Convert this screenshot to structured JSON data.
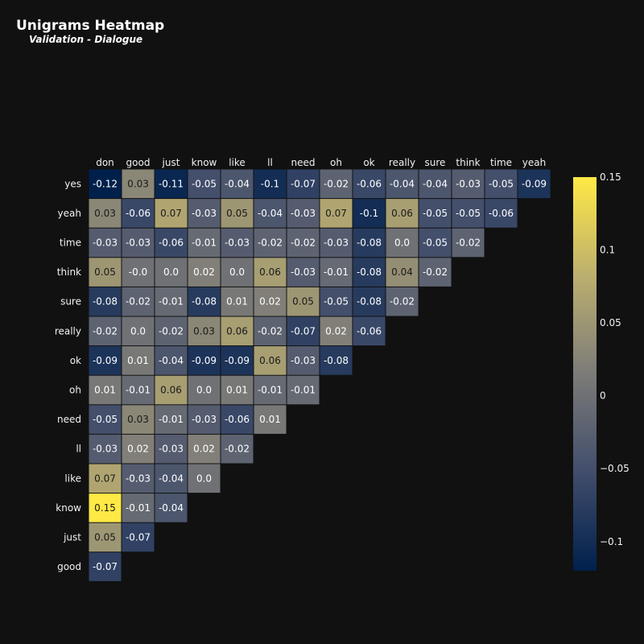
{
  "title": "Unigrams Heatmap",
  "subtitle": "Validation - Dialogue",
  "chart_data": {
    "type": "heatmap",
    "x_categories": [
      "don",
      "good",
      "just",
      "know",
      "like",
      "ll",
      "need",
      "oh",
      "ok",
      "really",
      "sure",
      "think",
      "time",
      "yeah"
    ],
    "y_categories": [
      "yes",
      "yeah",
      "time",
      "think",
      "sure",
      "really",
      "ok",
      "oh",
      "need",
      "ll",
      "like",
      "know",
      "just",
      "good"
    ],
    "rows": [
      {
        "y": "yes",
        "values": [
          -0.12,
          0.03,
          -0.11,
          -0.05,
          -0.04,
          -0.1,
          -0.07,
          -0.02,
          -0.06,
          -0.04,
          -0.04,
          -0.03,
          -0.05,
          -0.09
        ],
        "labels": [
          "-0.12",
          "0.03",
          "-0.11",
          "-0.05",
          "-0.04",
          "-0.1",
          "-0.07",
          "-0.02",
          "-0.06",
          "-0.04",
          "-0.04",
          "-0.03",
          "-0.05",
          "-0.09"
        ]
      },
      {
        "y": "yeah",
        "values": [
          0.03,
          -0.06,
          0.07,
          -0.03,
          0.05,
          -0.04,
          -0.03,
          0.07,
          -0.1,
          0.06,
          -0.05,
          -0.05,
          -0.06
        ],
        "labels": [
          "0.03",
          "-0.06",
          "0.07",
          "-0.03",
          "0.05",
          "-0.04",
          "-0.03",
          "0.07",
          "-0.1",
          "0.06",
          "-0.05",
          "-0.05",
          "-0.06"
        ]
      },
      {
        "y": "time",
        "values": [
          -0.03,
          -0.03,
          -0.06,
          -0.01,
          -0.03,
          -0.02,
          -0.02,
          -0.03,
          -0.08,
          0.0,
          -0.05,
          -0.02
        ],
        "labels": [
          "-0.03",
          "-0.03",
          "-0.06",
          "-0.01",
          "-0.03",
          "-0.02",
          "-0.02",
          "-0.03",
          "-0.08",
          "0.0",
          "-0.05",
          "-0.02"
        ]
      },
      {
        "y": "think",
        "values": [
          0.05,
          -0.0,
          0.0,
          0.02,
          0.0,
          0.06,
          -0.03,
          -0.01,
          -0.08,
          0.04,
          -0.02
        ],
        "labels": [
          "0.05",
          "-0.0",
          "0.0",
          "0.02",
          "0.0",
          "0.06",
          "-0.03",
          "-0.01",
          "-0.08",
          "0.04",
          "-0.02"
        ]
      },
      {
        "y": "sure",
        "values": [
          -0.08,
          -0.02,
          -0.01,
          -0.08,
          0.01,
          0.02,
          0.05,
          -0.05,
          -0.08,
          -0.02
        ],
        "labels": [
          "-0.08",
          "-0.02",
          "-0.01",
          "-0.08",
          "0.01",
          "0.02",
          "0.05",
          "-0.05",
          "-0.08",
          "-0.02"
        ]
      },
      {
        "y": "really",
        "values": [
          -0.02,
          0.0,
          -0.02,
          0.03,
          0.06,
          -0.02,
          -0.07,
          0.02,
          -0.06
        ],
        "labels": [
          "-0.02",
          "0.0",
          "-0.02",
          "0.03",
          "0.06",
          "-0.02",
          "-0.07",
          "0.02",
          "-0.06"
        ]
      },
      {
        "y": "ok",
        "values": [
          -0.09,
          0.01,
          -0.04,
          -0.09,
          -0.09,
          0.06,
          -0.03,
          -0.08
        ],
        "labels": [
          "-0.09",
          "0.01",
          "-0.04",
          "-0.09",
          "-0.09",
          "0.06",
          "-0.03",
          "-0.08"
        ]
      },
      {
        "y": "oh",
        "values": [
          0.01,
          -0.01,
          0.06,
          0.0,
          0.01,
          -0.01,
          -0.01
        ],
        "labels": [
          "0.01",
          "-0.01",
          "0.06",
          "0.0",
          "0.01",
          "-0.01",
          "-0.01"
        ]
      },
      {
        "y": "need",
        "values": [
          -0.05,
          0.03,
          -0.01,
          -0.03,
          -0.06,
          0.01
        ],
        "labels": [
          "-0.05",
          "0.03",
          "-0.01",
          "-0.03",
          "-0.06",
          "0.01"
        ]
      },
      {
        "y": "ll",
        "values": [
          -0.03,
          0.02,
          -0.03,
          0.02,
          -0.02
        ],
        "labels": [
          "-0.03",
          "0.02",
          "-0.03",
          "0.02",
          "-0.02"
        ]
      },
      {
        "y": "like",
        "values": [
          0.07,
          -0.03,
          -0.04,
          0.0
        ],
        "labels": [
          "0.07",
          "-0.03",
          "-0.04",
          "0.0"
        ]
      },
      {
        "y": "know",
        "values": [
          0.15,
          -0.01,
          -0.04
        ],
        "labels": [
          "0.15",
          "-0.01",
          "-0.04"
        ]
      },
      {
        "y": "just",
        "values": [
          0.05,
          -0.07
        ],
        "labels": [
          "0.05",
          "-0.07"
        ]
      },
      {
        "y": "good",
        "values": [
          -0.07
        ],
        "labels": [
          "-0.07"
        ]
      }
    ],
    "colorscale": {
      "name": "cividis",
      "zmin": -0.12,
      "zmax": 0.15,
      "stops": [
        "#00204c",
        "#414d6b",
        "#7c7b78",
        "#bcaf6f",
        "#ffe945"
      ]
    },
    "colorbar_ticks": [
      {
        "value": 0.15,
        "label": "0.15"
      },
      {
        "value": 0.1,
        "label": "0.1"
      },
      {
        "value": 0.05,
        "label": "0.05"
      },
      {
        "value": 0,
        "label": "0"
      },
      {
        "value": -0.05,
        "label": "−0.05"
      },
      {
        "value": -0.1,
        "label": "−0.1"
      }
    ],
    "background": "#111111",
    "x_axis_position": "top"
  }
}
